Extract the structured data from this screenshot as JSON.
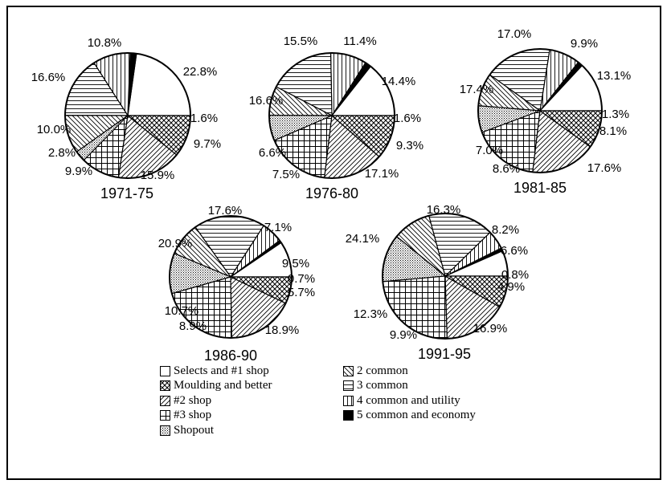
{
  "colors": {
    "ink": "#000000",
    "paper": "#ffffff"
  },
  "legend": {
    "items": [
      {
        "label": "Selects and #1 shop",
        "pattern": "white"
      },
      {
        "label": "Moulding and better",
        "pattern": "crosshatch"
      },
      {
        "label": "#2 shop",
        "pattern": "diag-right"
      },
      {
        "label": "#3 shop",
        "pattern": "grid"
      },
      {
        "label": "Shopout",
        "pattern": "dots"
      },
      {
        "label": "2 common",
        "pattern": "diag-left"
      },
      {
        "label": "3 common",
        "pattern": "horizontal"
      },
      {
        "label": "4 common and utility",
        "pattern": "vertical"
      },
      {
        "label": "5 common and economy",
        "pattern": "black"
      }
    ]
  },
  "chart_data": [
    {
      "type": "pie",
      "period": "1971-75",
      "labels": [
        "Selects and #1 shop",
        "5 common and economy",
        "4 common and utility",
        "3 common",
        "2 common",
        "Shopout",
        "#3 shop",
        "#2 shop",
        "Moulding and better"
      ],
      "values": [
        22.8,
        1.6,
        9.7,
        15.9,
        9.9,
        2.8,
        10.0,
        16.6,
        10.8
      ],
      "value_labels": [
        "22.8%",
        "1.6%",
        "9.7%",
        "15.9%",
        "9.9%",
        "2.8%",
        "10.0%",
        "16.6%",
        "10.8%"
      ]
    },
    {
      "type": "pie",
      "period": "1976-80",
      "labels": [
        "Selects and #1 shop",
        "5 common and economy",
        "4 common and utility",
        "3 common",
        "2 common",
        "Shopout",
        "#3 shop",
        "#2 shop",
        "Moulding and better"
      ],
      "values": [
        14.4,
        1.6,
        9.3,
        17.1,
        7.5,
        6.6,
        16.6,
        15.5,
        11.4
      ],
      "value_labels": [
        "14.4%",
        "1.6%",
        "9.3%",
        "17.1%",
        "7.5%",
        "6.6%",
        "16.6%",
        "15.5%",
        "11.4%"
      ]
    },
    {
      "type": "pie",
      "period": "1981-85",
      "labels": [
        "Selects and #1 shop",
        "5 common and economy",
        "4 common and utility",
        "3 common",
        "2 common",
        "Shopout",
        "#3 shop",
        "#2 shop",
        "Moulding and better"
      ],
      "values": [
        13.1,
        1.3,
        8.1,
        17.6,
        8.6,
        7.0,
        17.4,
        17.0,
        9.9
      ],
      "value_labels": [
        "13.1%",
        "1.3%",
        "8.1%",
        "17.6%",
        "8.6%",
        "7.0%",
        "17.4%",
        "17.0%",
        "9.9%"
      ]
    },
    {
      "type": "pie",
      "period": "1986-90",
      "labels": [
        "Selects and #1 shop",
        "5 common and economy",
        "4 common and utility",
        "3 common",
        "2 common",
        "Shopout",
        "#3 shop",
        "#2 shop",
        "Moulding and better"
      ],
      "values": [
        9.5,
        0.7,
        5.7,
        18.9,
        8.9,
        10.7,
        20.9,
        17.6,
        7.1
      ],
      "value_labels": [
        "9.5%",
        "0.7%",
        "5.7%",
        "18.9%",
        "8.9%",
        "10.7%",
        "20.9%",
        "17.6%",
        "7.1%"
      ]
    },
    {
      "type": "pie",
      "period": "1991-95",
      "labels": [
        "Selects and #1 shop",
        "5 common and economy",
        "4 common and utility",
        "3 common",
        "2 common",
        "Shopout",
        "#3 shop",
        "#2 shop",
        "Moulding and better"
      ],
      "values": [
        6.6,
        0.8,
        4.9,
        16.9,
        9.9,
        12.3,
        24.1,
        16.3,
        8.2
      ],
      "value_labels": [
        "6.6%",
        "0.8%",
        "4.9%",
        "16.9%",
        "9.9%",
        "12.3%",
        "24.1%",
        "16.3%",
        "8.2%"
      ]
    }
  ]
}
